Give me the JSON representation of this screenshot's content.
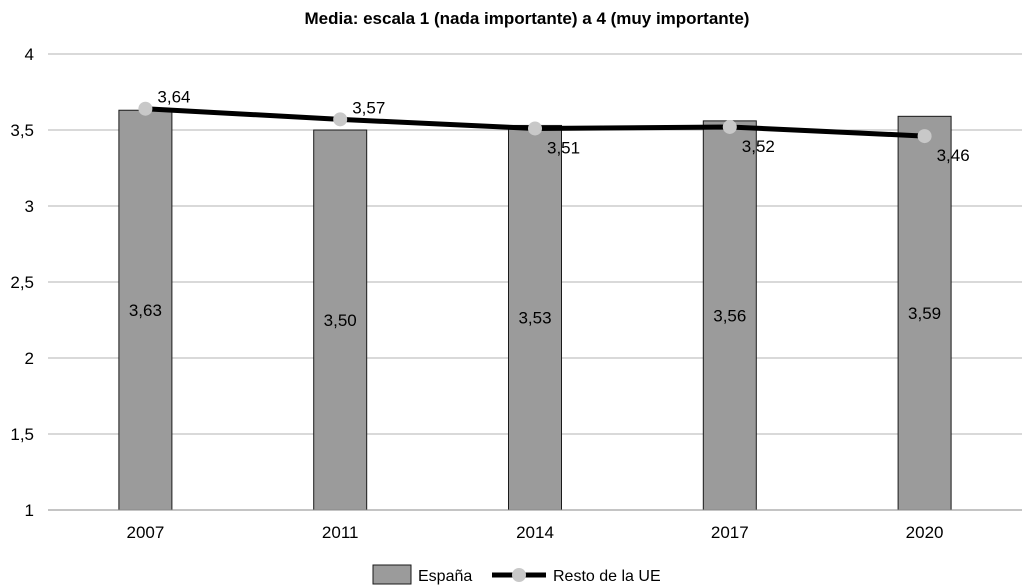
{
  "chart_data": {
    "type": "bar",
    "title": "Media: escala 1 (nada importante) a 4 (muy importante)",
    "categories": [
      "2007",
      "2011",
      "2014",
      "2017",
      "2020"
    ],
    "ylim": [
      1,
      4
    ],
    "yticks": [
      1,
      1.5,
      2,
      2.5,
      3,
      3.5,
      4
    ],
    "ytick_labels": [
      "1",
      "1,5",
      "2",
      "2,5",
      "3",
      "3,5",
      "4"
    ],
    "grid": true,
    "legend_position": "bottom",
    "series": [
      {
        "name": "España",
        "type": "bar",
        "color": "#9b9b9b",
        "values": [
          3.63,
          3.5,
          3.53,
          3.56,
          3.59
        ],
        "labels": [
          "3,63",
          "3,50",
          "3,53",
          "3,56",
          "3,59"
        ]
      },
      {
        "name": "Resto de la UE",
        "type": "line",
        "color": "#000000",
        "marker_color": "#c8c8c8",
        "values": [
          3.64,
          3.57,
          3.51,
          3.52,
          3.46
        ],
        "labels": [
          "3,64",
          "3,57",
          "3,51",
          "3,52",
          "3,46"
        ]
      }
    ]
  }
}
